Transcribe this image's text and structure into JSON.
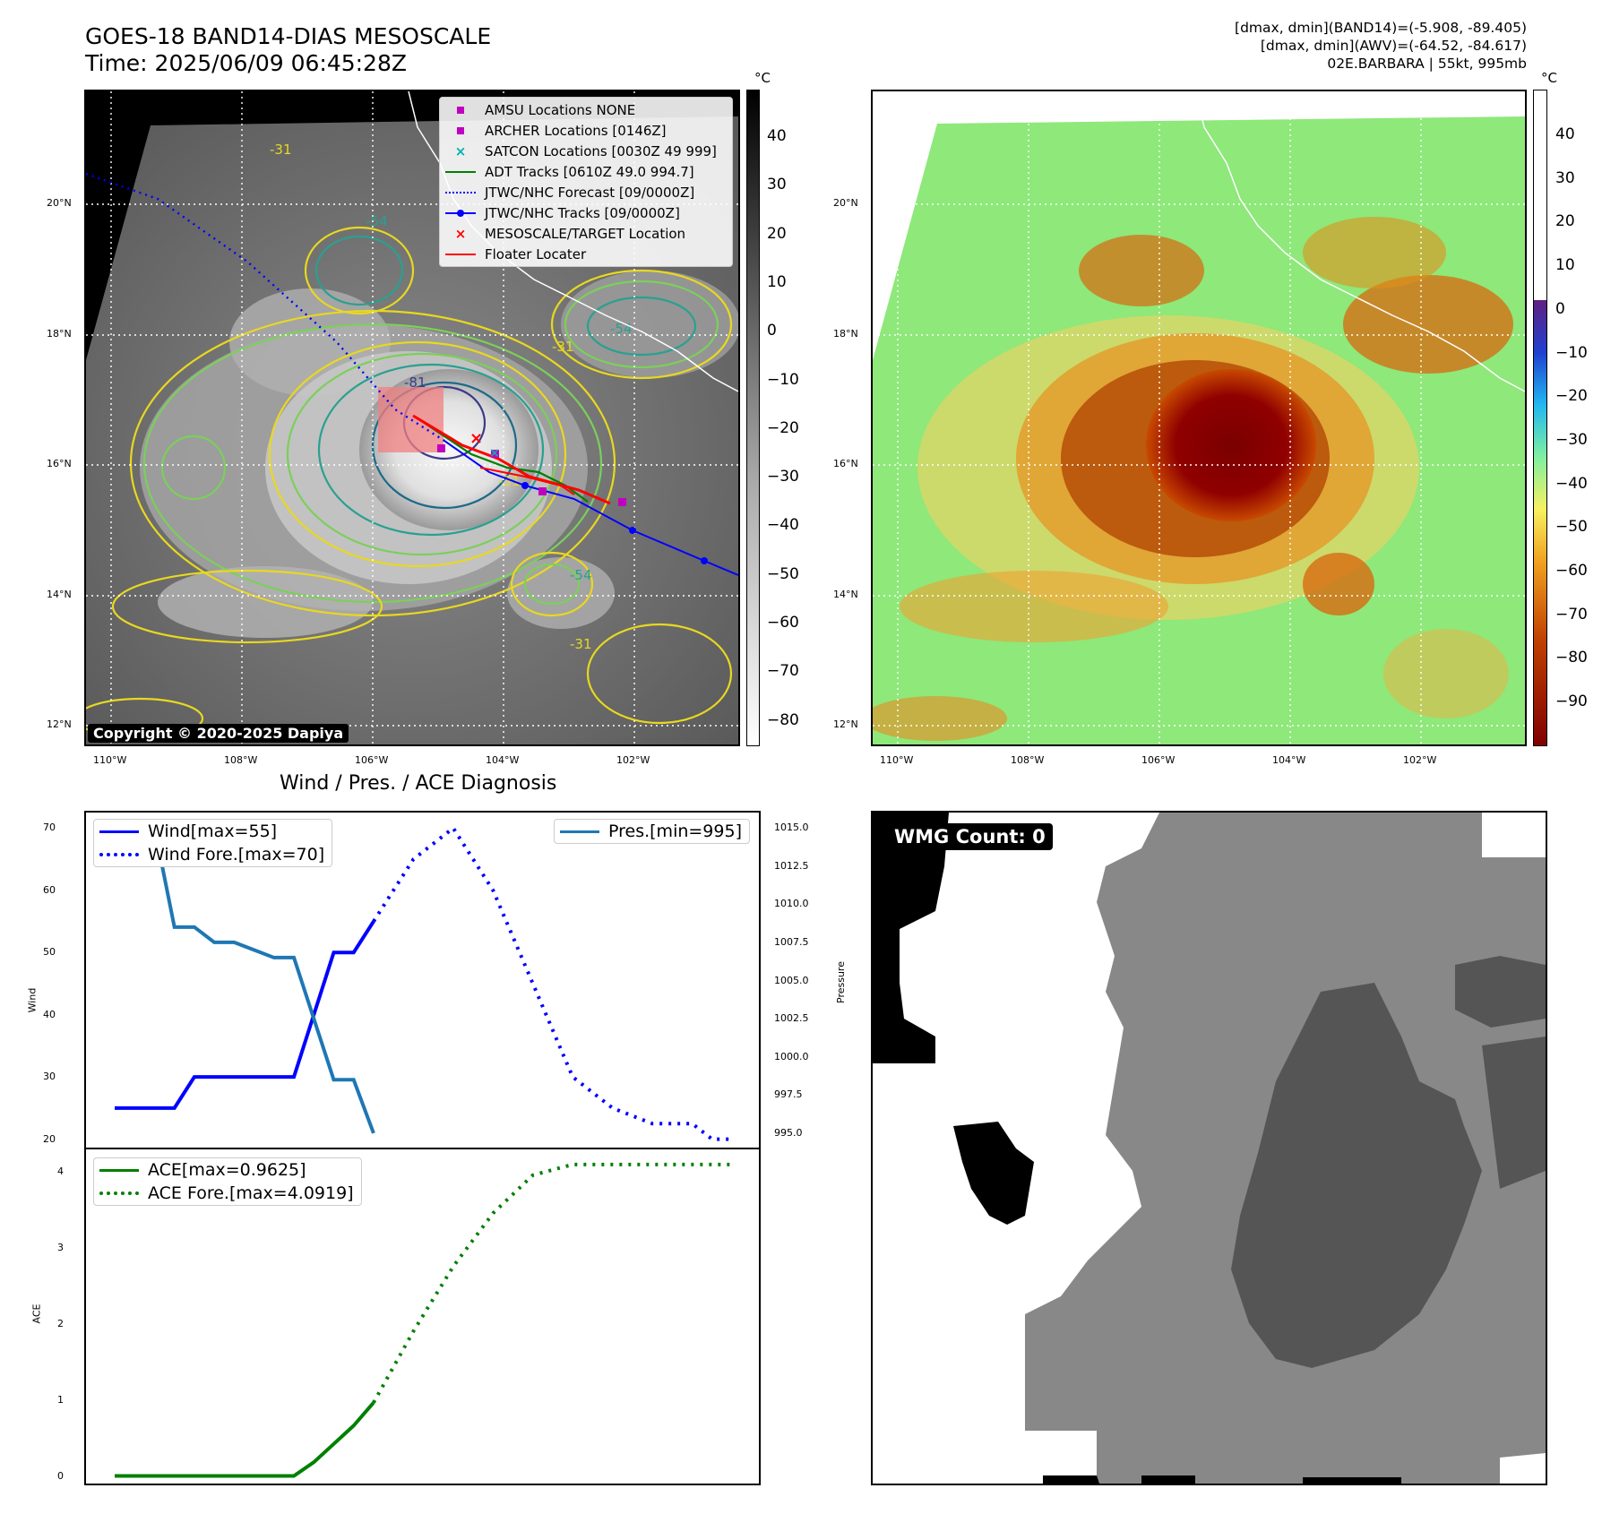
{
  "header": {
    "title_line1": "GOES-18 BAND14-DIAS MESOSCALE",
    "title_line2": "Time: 2025/06/09 06:45:28Z",
    "info_line1": "[dmax, dmin](BAND14)=(-5.908, -89.405)",
    "info_line2": "[dmax, dmin](AWV)=(-64.52, -84.617)",
    "info_line3": "02E.BARBARA | 55kt, 995mb"
  },
  "map": {
    "lat_labels": [
      "20°N",
      "18°N",
      "16°N",
      "14°N",
      "12°N"
    ],
    "lon_labels": [
      "110°W",
      "108°W",
      "106°W",
      "104°W",
      "102°W"
    ],
    "copyright": "Copyright © 2020-2025 Dapiya",
    "contour_labels": [
      "-54",
      "-31",
      "-31",
      "-54",
      "-31",
      "-81",
      "-31",
      "-54"
    ],
    "legend": [
      {
        "label": "AMSU Locations NONE",
        "color": "#c000c0",
        "kind": "square"
      },
      {
        "label": "ARCHER Locations [0146Z]",
        "color": "#c000c0",
        "kind": "square"
      },
      {
        "label": "SATCON Locations [0030Z 49 999]",
        "color": "#00b0b0",
        "kind": "x"
      },
      {
        "label": "ADT Tracks [0610Z 49.0 994.7]",
        "color": "#008000",
        "kind": "line"
      },
      {
        "label": "JTWC/NHC Forecast [09/0000Z]",
        "color": "#0000ff",
        "kind": "dotted"
      },
      {
        "label": "JTWC/NHC Tracks [09/0000Z]",
        "color": "#0000ff",
        "kind": "linedot"
      },
      {
        "label": "MESOSCALE/TARGET Location",
        "color": "#ff0000",
        "kind": "x"
      },
      {
        "label": "Floater Locater",
        "color": "#ff0000",
        "kind": "line"
      }
    ],
    "colorbar_left": {
      "unit": "°C",
      "ticks": [
        "40",
        "30",
        "20",
        "10",
        "0",
        "−10",
        "−20",
        "−30",
        "−40",
        "−50",
        "−60",
        "−70",
        "−80"
      ]
    },
    "colorbar_right": {
      "unit": "°C",
      "ticks": [
        "40",
        "30",
        "20",
        "10",
        "0",
        "−10",
        "−20",
        "−30",
        "−40",
        "−50",
        "−60",
        "−70",
        "−80",
        "−90"
      ]
    }
  },
  "diagnosis": {
    "title": "Wind / Pres. / ACE Diagnosis",
    "wmg_label": "WMG Count: 0"
  },
  "chart_data": [
    {
      "type": "line",
      "title": "Wind / Pres. / ACE Diagnosis",
      "ylabel": "Wind",
      "y2label": "Pressure",
      "ylim": [
        18.5,
        72.5
      ],
      "y2lim": [
        994.0,
        1016.0
      ],
      "yticks": [
        "70",
        "60",
        "50",
        "40",
        "30",
        "20"
      ],
      "y2ticks": [
        "1015.0",
        "1012.5",
        "1010.0",
        "1007.5",
        "1005.0",
        "1002.5",
        "1000.0",
        "997.5",
        "995.0"
      ],
      "x": [
        0,
        1,
        2,
        3,
        4,
        5,
        6,
        7,
        8,
        9,
        10,
        11,
        12,
        13,
        14,
        15,
        16,
        17,
        18,
        19,
        20,
        21,
        22,
        23,
        24,
        25,
        26,
        27,
        28,
        29,
        30,
        31
      ],
      "series": [
        {
          "name": "Wind[max=55]",
          "style": "solid",
          "color": "#0000ff",
          "axis": "left",
          "x": [
            0,
            3,
            4,
            9,
            11,
            12,
            13
          ],
          "values": [
            25,
            25,
            30,
            30,
            50,
            50,
            55
          ]
        },
        {
          "name": "Wind Fore.[max=70]",
          "style": "dotted",
          "color": "#0000ff",
          "axis": "left",
          "x": [
            13,
            15,
            17,
            19,
            21,
            23,
            25,
            27,
            29,
            30,
            31
          ],
          "values": [
            55,
            65,
            70,
            60,
            45,
            30,
            25,
            22.5,
            22.5,
            20,
            20
          ]
        },
        {
          "name": "Pres.[min=995]",
          "style": "solid",
          "color": "#1f77b4",
          "axis": "right",
          "x": [
            0,
            2,
            3,
            4,
            5,
            6,
            7,
            8,
            9,
            10,
            11,
            12,
            13
          ],
          "values": [
            1015,
            1015,
            1008.5,
            1008.5,
            1007.5,
            1007.5,
            1007,
            1006.5,
            1006.5,
            1002.5,
            998.5,
            998.5,
            995
          ]
        }
      ]
    },
    {
      "type": "line",
      "ylabel": "ACE",
      "ylim": [
        -0.1,
        4.3
      ],
      "yticks": [
        "4",
        "3",
        "2",
        "1",
        "0"
      ],
      "series": [
        {
          "name": "ACE[max=0.9625]",
          "style": "solid",
          "color": "#008000",
          "x": [
            0,
            9,
            10,
            11,
            12,
            13
          ],
          "values": [
            0,
            0,
            0.18,
            0.42,
            0.66,
            0.9625
          ]
        },
        {
          "name": "ACE Fore.[max=4.0919]",
          "style": "dotted",
          "color": "#008000",
          "x": [
            13,
            15,
            17,
            19,
            21,
            23,
            25,
            27,
            29,
            31
          ],
          "values": [
            0.9625,
            1.9,
            2.75,
            3.45,
            3.95,
            4.09,
            4.09,
            4.09,
            4.09,
            4.09
          ]
        }
      ]
    }
  ]
}
